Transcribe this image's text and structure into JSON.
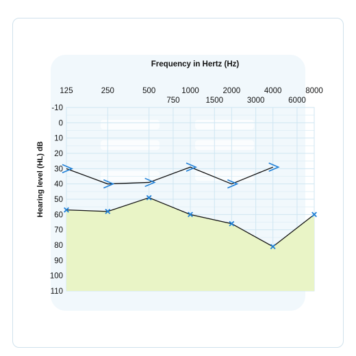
{
  "chart_data": {
    "type": "line",
    "title": "Frequency in Hertz (Hz)",
    "ylabel": "Hearing level (HL) dB",
    "x_major_ticks": [
      "125",
      "250",
      "500",
      "1000",
      "2000",
      "4000",
      "8000"
    ],
    "x_minor_ticks": [
      "750",
      "1500",
      "3000",
      "6000"
    ],
    "y_ticks": [
      "-10",
      "0",
      "10",
      "20",
      "30",
      "40",
      "50",
      "60",
      "70",
      "80",
      "90",
      "100",
      "110"
    ],
    "ylim": [
      -10,
      110
    ],
    "y_inverted": true,
    "x_scale": "log",
    "grid": true,
    "series": [
      {
        "marker": "x",
        "color": "#1f7fd6",
        "line_color": "#111111",
        "fill_below": "#e9f4c6",
        "points": [
          {
            "x": 125,
            "y": 57
          },
          {
            "x": 250,
            "y": 58
          },
          {
            "x": 500,
            "y": 49
          },
          {
            "x": 1000,
            "y": 60
          },
          {
            "x": 2000,
            "y": 66
          },
          {
            "x": 4000,
            "y": 81
          },
          {
            "x": 8000,
            "y": 60
          }
        ]
      },
      {
        "marker": ">",
        "color": "#1f7fd6",
        "line_color": "#111111",
        "points": [
          {
            "x": 125,
            "y": 30
          },
          {
            "x": 250,
            "y": 40
          },
          {
            "x": 500,
            "y": 39
          },
          {
            "x": 1000,
            "y": 29
          },
          {
            "x": 2000,
            "y": 40
          },
          {
            "x": 4000,
            "y": 29
          }
        ]
      }
    ]
  }
}
